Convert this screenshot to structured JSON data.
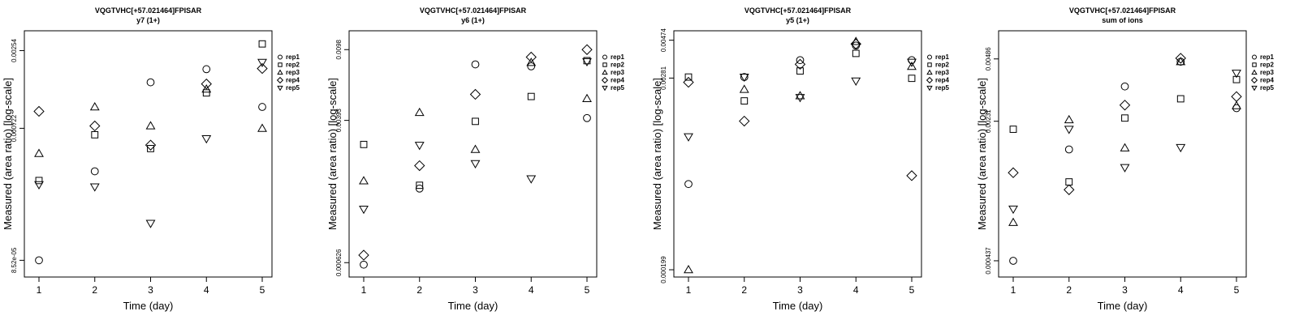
{
  "chart_data": [
    {
      "type": "scatter",
      "title": "VQGTVHC[+57.021464]FPISAR",
      "subtitle": "y7 (1+)",
      "xlabel": "Time (day)",
      "ylabel": "Measured (area ratio) [log-scale]",
      "x": [
        1,
        2,
        3,
        4,
        5
      ],
      "yscale": "log",
      "ylim": [
        6.5e-05,
        0.0035
      ],
      "yticks": [
        8.52e-05,
        0.000722,
        0.00254
      ],
      "ytick_labels": [
        "8.52e-05",
        "0.000722",
        "0.00254"
      ],
      "legend_position": "right",
      "series": [
        {
          "name": "rep1",
          "marker": "circle",
          "values": [
            8.52e-05,
            0.00036,
            0.00152,
            0.00188,
            0.00102
          ]
        },
        {
          "name": "rep2",
          "marker": "square",
          "values": [
            0.00031,
            0.00065,
            0.00052,
            0.00128,
            0.00283
          ]
        },
        {
          "name": "rep3",
          "marker": "triangle-up",
          "values": [
            0.00048,
            0.00102,
            0.00075,
            0.00136,
            0.00072
          ]
        },
        {
          "name": "rep4",
          "marker": "diamond",
          "values": [
            0.00095,
            0.00075,
            0.00055,
            0.00148,
            0.0019
          ]
        },
        {
          "name": "rep5",
          "marker": "triangle-down",
          "values": [
            0.00029,
            0.00028,
            0.000155,
            0.00061,
            0.0021
          ]
        }
      ]
    },
    {
      "type": "scatter",
      "title": "VQGTVHC[+57.021464]FPISAR",
      "subtitle": "y6 (1+)",
      "xlabel": "Time (day)",
      "ylabel": "Measured (area ratio) [log-scale]",
      "x": [
        1,
        2,
        3,
        4,
        5
      ],
      "yscale": "log",
      "ylim": [
        0.00052,
        0.0125
      ],
      "yticks": [
        0.000626,
        0.00393,
        0.0098
      ],
      "ytick_labels": [
        "0.000626",
        "0.00393",
        "0.0098"
      ],
      "legend_position": "right",
      "series": [
        {
          "name": "rep1",
          "marker": "circle",
          "values": [
            0.00061,
            0.00163,
            0.0081,
            0.0079,
            0.00405
          ]
        },
        {
          "name": "rep2",
          "marker": "square",
          "values": [
            0.00288,
            0.0017,
            0.00388,
            0.00535,
            0.0085
          ]
        },
        {
          "name": "rep3",
          "marker": "triangle-up",
          "values": [
            0.0018,
            0.00435,
            0.0027,
            0.0083,
            0.0052
          ]
        },
        {
          "name": "rep4",
          "marker": "diamond",
          "values": [
            0.00069,
            0.00219,
            0.0055,
            0.0089,
            0.0098
          ]
        },
        {
          "name": "rep5",
          "marker": "triangle-down",
          "values": [
            0.00125,
            0.00285,
            0.00225,
            0.00185,
            0.0084
          ]
        }
      ]
    },
    {
      "type": "scatter",
      "title": "VQGTVHC[+57.021464]FPISAR",
      "subtitle": "y5 (1+)",
      "xlabel": "Time (day)",
      "ylabel": "Measured (area ratio) [log-scale]",
      "x": [
        1,
        2,
        3,
        4,
        5
      ],
      "yscale": "log",
      "ylim": [
        0.00018,
        0.0054
      ],
      "yticks": [
        0.000199,
        0.00281,
        0.00474
      ],
      "ytick_labels": [
        "0.000199",
        "0.00281",
        "0.00474"
      ],
      "legend_position": "right",
      "series": [
        {
          "name": "rep1",
          "marker": "circle",
          "values": [
            0.00065,
            0.00285,
            0.0036,
            0.0044,
            0.0036
          ]
        },
        {
          "name": "rep2",
          "marker": "square",
          "values": [
            0.00285,
            0.00205,
            0.0031,
            0.00395,
            0.0028
          ]
        },
        {
          "name": "rep3",
          "marker": "triangle-up",
          "values": [
            0.000199,
            0.0024,
            0.0022,
            0.00465,
            0.0033
          ]
        },
        {
          "name": "rep4",
          "marker": "diamond",
          "values": [
            0.00265,
            0.00155,
            0.0034,
            0.0045,
            0.00073
          ]
        },
        {
          "name": "rep5",
          "marker": "triangle-down",
          "values": [
            0.00125,
            0.00285,
            0.00215,
            0.0027,
            0.0035
          ]
        }
      ]
    },
    {
      "type": "scatter",
      "title": "VQGTVHC[+57.021464]FPISAR",
      "subtitle": "sum of ions",
      "xlabel": "Time (day)",
      "ylabel": "Measured (area ratio) [log-scale]",
      "x": [
        1,
        2,
        3,
        4,
        5
      ],
      "yscale": "log",
      "ylim": [
        0.00036,
        0.0068
      ],
      "yticks": [
        0.000437,
        0.00231,
        0.00486
      ],
      "ytick_labels": [
        "0.000437",
        "0.00231",
        "0.00486"
      ],
      "legend_position": "right",
      "series": [
        {
          "name": "rep1",
          "marker": "circle",
          "values": [
            0.000437,
            0.00165,
            0.0035,
            0.0047,
            0.0027
          ]
        },
        {
          "name": "rep2",
          "marker": "square",
          "values": [
            0.0021,
            0.00112,
            0.0024,
            0.00302,
            0.0038
          ]
        },
        {
          "name": "rep3",
          "marker": "triangle-up",
          "values": [
            0.00069,
            0.00235,
            0.00168,
            0.0047,
            0.00278
          ]
        },
        {
          "name": "rep4",
          "marker": "diamond",
          "values": [
            0.00125,
            0.00102,
            0.0028,
            0.0049,
            0.0031
          ]
        },
        {
          "name": "rep5",
          "marker": "triangle-down",
          "values": [
            0.00081,
            0.0021,
            0.00133,
            0.00169,
            0.0041
          ]
        }
      ]
    }
  ]
}
